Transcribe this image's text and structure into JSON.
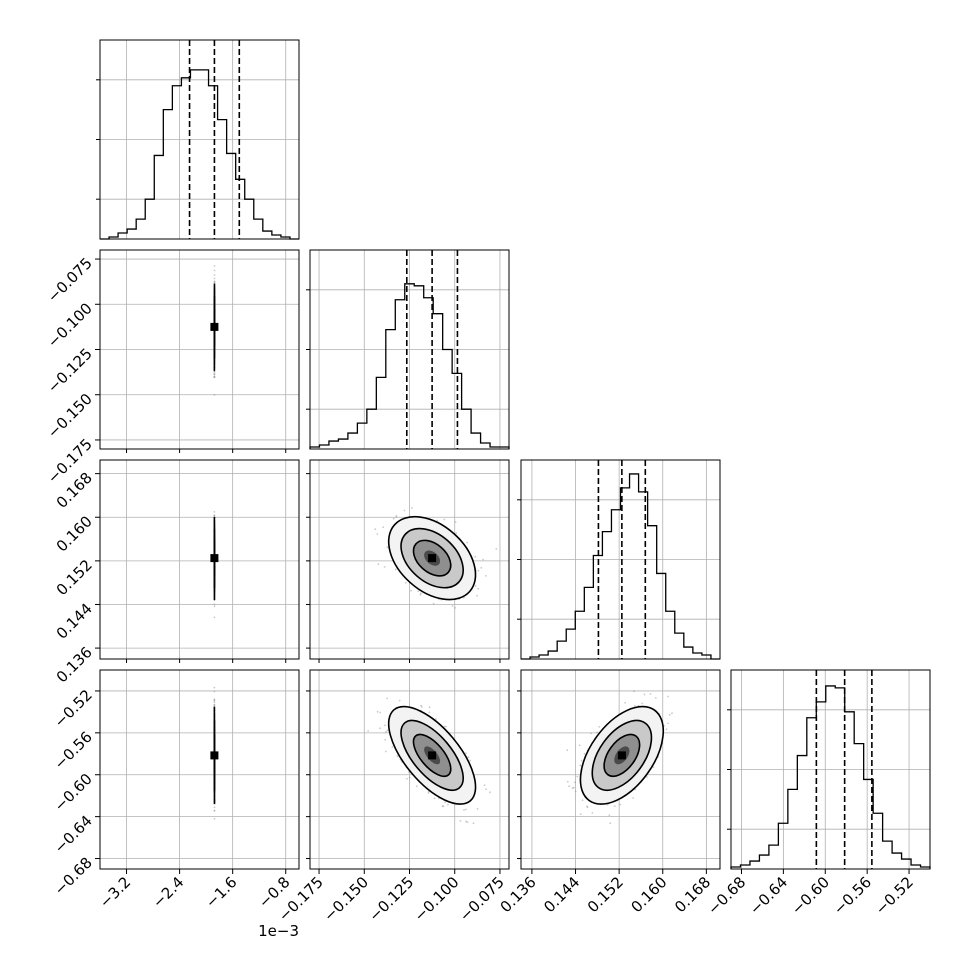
{
  "chart_data": {
    "type": "corner",
    "grid": true,
    "parameters": [
      {
        "tick_labels": [
          "−3.2",
          "−2.4",
          "−1.6",
          "−0.8"
        ],
        "offset_label": "1e−3",
        "range": [
          -3.6,
          -0.6
        ],
        "quantiles": [
          -2.25,
          -1.875,
          -1.5
        ],
        "histogram": [
          0,
          0.01,
          0.03,
          0.05,
          0.1,
          0.2,
          0.42,
          0.65,
          0.77,
          0.81,
          0.85,
          0.85,
          0.77,
          0.6,
          0.43,
          0.3,
          0.2,
          0.1,
          0.04,
          0.02,
          0.01,
          0.0
        ]
      },
      {
        "tick_labels": [
          "−0.175",
          "−0.150",
          "−0.125",
          "−0.100",
          "−0.075"
        ],
        "range": [
          -0.18,
          -0.07
        ],
        "quantiles": [
          -0.1265,
          -0.1125,
          -0.0985
        ],
        "histogram": [
          0.01,
          0.02,
          0.04,
          0.05,
          0.08,
          0.13,
          0.2,
          0.36,
          0.6,
          0.75,
          0.83,
          0.82,
          0.76,
          0.68,
          0.5,
          0.38,
          0.2,
          0.08,
          0.03,
          0.01,
          0.01
        ]
      },
      {
        "tick_labels": [
          "0.136",
          "0.144",
          "0.152",
          "0.160",
          "0.168"
        ],
        "range": [
          0.134,
          0.1705
        ],
        "quantiles": [
          0.1482,
          0.1525,
          0.1568
        ],
        "histogram": [
          0,
          0.01,
          0.02,
          0.04,
          0.09,
          0.15,
          0.24,
          0.36,
          0.52,
          0.64,
          0.75,
          0.86,
          0.93,
          0.84,
          0.67,
          0.43,
          0.24,
          0.13,
          0.06,
          0.03,
          0.02,
          0.0
        ]
      },
      {
        "tick_labels": [
          "−0.68",
          "−0.64",
          "−0.60",
          "−0.56",
          "−0.52"
        ],
        "range": [
          -0.69,
          -0.5
        ],
        "quantiles": [
          -0.6085,
          -0.5815,
          -0.5555
        ],
        "histogram": [
          0.01,
          0.02,
          0.04,
          0.07,
          0.12,
          0.23,
          0.4,
          0.57,
          0.76,
          0.84,
          0.92,
          0.91,
          0.79,
          0.63,
          0.45,
          0.28,
          0.14,
          0.08,
          0.05,
          0.02,
          0.01
        ]
      }
    ],
    "scatter_pairs": [
      {
        "x": 0,
        "y": 1,
        "mean": [
          -1.875,
          -0.1125
        ],
        "sigma": [
          0.00035,
          0.0098
        ],
        "corr": 0.78,
        "ellipse_angle_deg": -42
      },
      {
        "x": 0,
        "y": 2,
        "mean": [
          -1.875,
          0.1525
        ],
        "sigma": [
          0.00035,
          0.0031
        ],
        "corr": -0.45,
        "ellipse_angle_deg": 28
      },
      {
        "x": 1,
        "y": 2,
        "mean": [
          -0.1125,
          0.1525
        ],
        "sigma": [
          0.0098,
          0.0031
        ],
        "corr": -0.4,
        "ellipse_angle_deg": 25
      },
      {
        "x": 0,
        "y": 3,
        "mean": [
          -1.875,
          -0.5815
        ],
        "sigma": [
          0.00035,
          0.019
        ],
        "corr": -0.93,
        "ellipse_angle_deg": 52
      },
      {
        "x": 1,
        "y": 3,
        "mean": [
          -0.1125,
          -0.5815
        ],
        "sigma": [
          0.0098,
          0.019
        ],
        "corr": -0.65,
        "ellipse_angle_deg": 40
      },
      {
        "x": 2,
        "y": 3,
        "mean": [
          0.1525,
          -0.5815
        ],
        "sigma": [
          0.0031,
          0.019
        ],
        "corr": 0.5,
        "ellipse_angle_deg": -38
      }
    ]
  }
}
